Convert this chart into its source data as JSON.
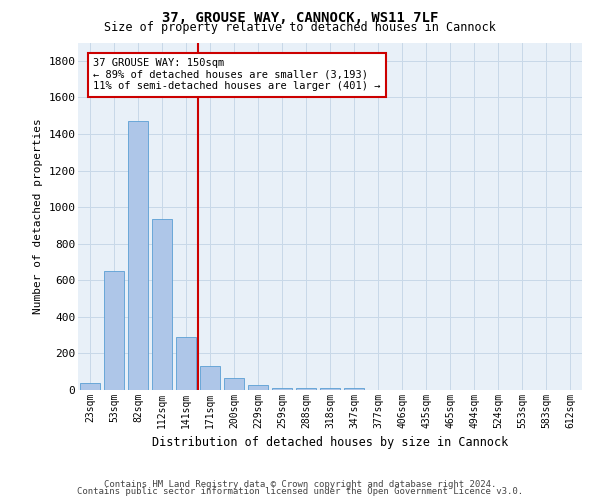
{
  "title1": "37, GROUSE WAY, CANNOCK, WS11 7LF",
  "title2": "Size of property relative to detached houses in Cannock",
  "xlabel": "Distribution of detached houses by size in Cannock",
  "ylabel": "Number of detached properties",
  "bar_labels": [
    "23sqm",
    "53sqm",
    "82sqm",
    "112sqm",
    "141sqm",
    "171sqm",
    "200sqm",
    "229sqm",
    "259sqm",
    "288sqm",
    "318sqm",
    "347sqm",
    "377sqm",
    "406sqm",
    "435sqm",
    "465sqm",
    "494sqm",
    "524sqm",
    "553sqm",
    "583sqm",
    "612sqm"
  ],
  "bar_values": [
    40,
    650,
    1470,
    935,
    290,
    130,
    65,
    25,
    10,
    10,
    10,
    10,
    0,
    0,
    0,
    0,
    0,
    0,
    0,
    0,
    0
  ],
  "property_bin_index": 4,
  "annotation_title": "37 GROUSE WAY: 150sqm",
  "annotation_line1": "← 89% of detached houses are smaller (3,193)",
  "annotation_line2": "11% of semi-detached houses are larger (401) →",
  "bar_color": "#aec6e8",
  "bar_edge_color": "#5a9fd4",
  "red_line_color": "#cc0000",
  "annotation_box_color": "#ffffff",
  "annotation_box_edge": "#cc0000",
  "grid_color": "#c8d8e8",
  "background_color": "#e8f0f8",
  "ylim": [
    0,
    1900
  ],
  "yticks": [
    0,
    200,
    400,
    600,
    800,
    1000,
    1200,
    1400,
    1600,
    1800
  ],
  "footer1": "Contains HM Land Registry data © Crown copyright and database right 2024.",
  "footer2": "Contains public sector information licensed under the Open Government Licence v3.0."
}
